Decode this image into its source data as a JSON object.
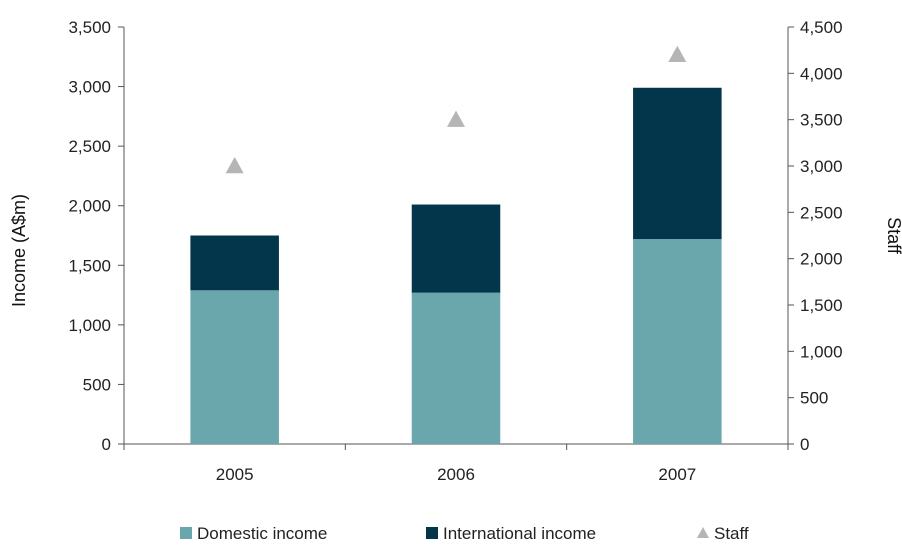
{
  "chart_data": {
    "type": "bar",
    "stacked": true,
    "categories": [
      "2005",
      "2006",
      "2007"
    ],
    "series": [
      {
        "name": "Domestic income",
        "axis": "left",
        "values": [
          1290,
          1270,
          1720
        ],
        "color": "#69a7ad"
      },
      {
        "name": "International income",
        "axis": "left",
        "values": [
          460,
          740,
          1270
        ],
        "color": "#03364a"
      },
      {
        "name": "Staff",
        "axis": "right",
        "marker": "triangle",
        "values": [
          3000,
          3500,
          4200
        ],
        "color": "#b5b5b5"
      }
    ],
    "ylabel": "Income (A$m)",
    "ylim": [
      0,
      3500
    ],
    "yticks": [
      "0",
      "500",
      "1,000",
      "1,500",
      "2,000",
      "2,500",
      "3,000",
      "3,500"
    ],
    "y2label": "Staff",
    "y2lim": [
      0,
      4500
    ],
    "y2ticks": [
      "0",
      "500",
      "1,000",
      "1,500",
      "2,000",
      "2,500",
      "3,000",
      "3,500",
      "4,000",
      "4,500"
    ],
    "grid": false,
    "legend_position": "bottom"
  }
}
